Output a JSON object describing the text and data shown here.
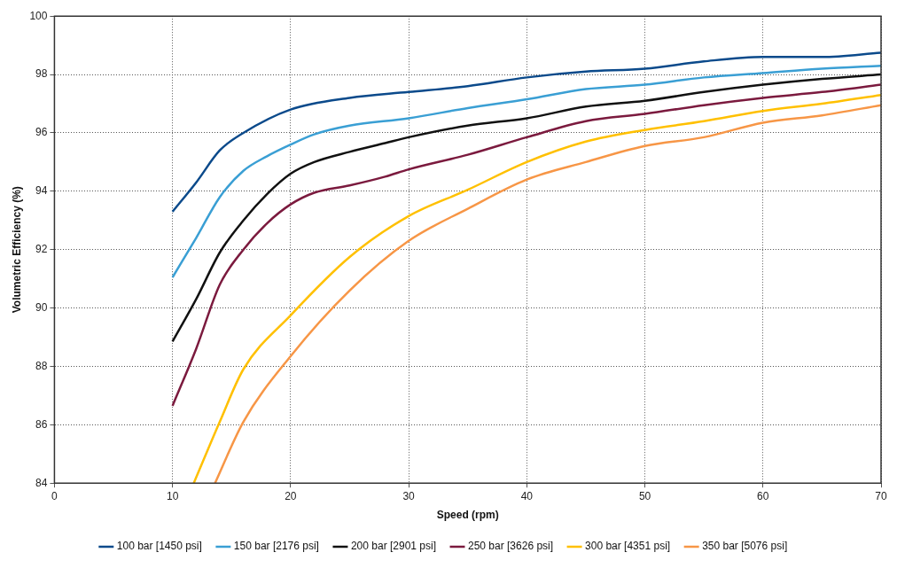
{
  "chart_data": {
    "type": "line",
    "xlabel": "Speed (rpm)",
    "ylabel": "Volumetric Efficiency (%)",
    "xlim": [
      0,
      70
    ],
    "xticks": [
      0,
      10,
      20,
      30,
      40,
      50,
      60,
      70
    ],
    "ylim": [
      84,
      100
    ],
    "yticks": [
      84,
      86,
      88,
      90,
      92,
      94,
      96,
      98,
      100
    ],
    "grid": true,
    "legend": "bottom",
    "marker": "none",
    "line_style": "solid",
    "series": [
      {
        "name": "100 bar [1450 psi]",
        "color": "#0b4a8b",
        "x": [
          10,
          12,
          14,
          16,
          20,
          25,
          30,
          35,
          40,
          45,
          50,
          55,
          60,
          65,
          70
        ],
        "values": [
          93.3,
          94.3,
          95.4,
          96.0,
          96.8,
          97.2,
          97.4,
          97.6,
          97.9,
          98.1,
          98.2,
          98.45,
          98.6,
          98.6,
          98.75
        ]
      },
      {
        "name": "150 bar [2176 psi]",
        "color": "#3a9fd4",
        "x": [
          10,
          12,
          14,
          16,
          18,
          20,
          22,
          25,
          30,
          35,
          40,
          45,
          50,
          55,
          60,
          65,
          70
        ],
        "values": [
          91.05,
          92.4,
          93.8,
          94.7,
          95.2,
          95.6,
          95.95,
          96.25,
          96.5,
          96.85,
          97.15,
          97.5,
          97.65,
          97.9,
          98.05,
          98.2,
          98.3
        ]
      },
      {
        "name": "200 bar [2901 psi]",
        "color": "#111111",
        "x": [
          10,
          12,
          14,
          16,
          18,
          20,
          22,
          25,
          28,
          30,
          35,
          40,
          45,
          50,
          55,
          60,
          65,
          70
        ],
        "values": [
          88.85,
          90.3,
          91.9,
          93.0,
          93.9,
          94.6,
          95.0,
          95.35,
          95.65,
          95.85,
          96.25,
          96.5,
          96.9,
          97.1,
          97.4,
          97.65,
          97.85,
          98.0
        ]
      },
      {
        "name": "250 bar [3626 psi]",
        "color": "#7b1a3e",
        "x": [
          10,
          12,
          14,
          16,
          18,
          20,
          22,
          25,
          28,
          30,
          35,
          40,
          45,
          50,
          55,
          60,
          65,
          70
        ],
        "values": [
          86.65,
          88.6,
          90.8,
          92.0,
          92.9,
          93.55,
          93.95,
          94.2,
          94.5,
          94.75,
          95.25,
          95.85,
          96.4,
          96.65,
          96.95,
          97.2,
          97.4,
          97.65
        ]
      },
      {
        "name": "300 bar [4351 psi]",
        "color": "#ffc000",
        "x": [
          11.8,
          14,
          16,
          20,
          25,
          30,
          35,
          40,
          45,
          50,
          55,
          60,
          65,
          70
        ],
        "values": [
          84,
          86.1,
          87.9,
          89.75,
          91.75,
          93.15,
          94.05,
          95.0,
          95.7,
          96.1,
          96.4,
          96.75,
          97.0,
          97.3
        ]
      },
      {
        "name": "350 bar [5076 psi]",
        "color": "#f79646",
        "x": [
          13.6,
          16,
          20,
          25,
          30,
          35,
          40,
          45,
          50,
          55,
          60,
          65,
          70
        ],
        "values": [
          84,
          86.1,
          88.35,
          90.6,
          92.3,
          93.4,
          94.4,
          95.0,
          95.55,
          95.85,
          96.35,
          96.6,
          96.95
        ]
      }
    ]
  }
}
